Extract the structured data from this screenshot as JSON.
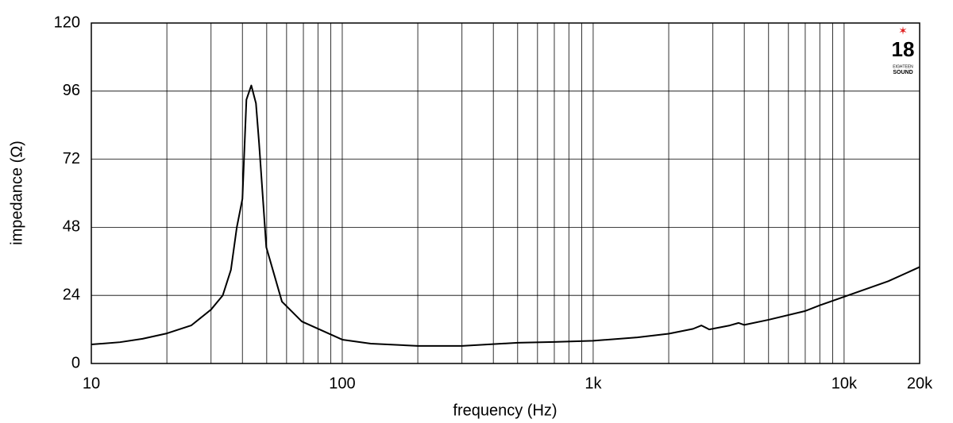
{
  "chart_data": {
    "type": "line",
    "xlabel": "frequency (Hz)",
    "ylabel": "impedance (Ω)",
    "x": [
      10,
      13,
      16,
      20,
      25,
      30,
      33.4,
      36,
      38,
      40,
      41.5,
      43.4,
      45.3,
      46.6,
      49.8,
      57.5,
      69,
      100,
      130,
      200,
      300,
      500,
      700,
      1000,
      1500,
      2000,
      2500,
      2700,
      2900,
      3500,
      3800,
      4000,
      5000,
      7000,
      8000,
      10000,
      15000,
      20000
    ],
    "values": [
      6.7,
      7.5,
      8.7,
      10.6,
      13.4,
      19,
      24,
      33,
      48,
      58,
      93,
      98,
      91.7,
      77.8,
      41,
      21.8,
      14.8,
      8.4,
      7,
      6.2,
      6.2,
      7.3,
      7.6,
      8,
      9.2,
      10.5,
      12.2,
      13.4,
      12,
      13.4,
      14.3,
      13.6,
      15.4,
      18.5,
      20.5,
      23.5,
      29,
      34
    ],
    "color": "#000000",
    "xscale": "log",
    "minor_grid": true,
    "grid": true,
    "xlim": [
      10,
      20000
    ],
    "ylim": [
      0,
      120
    ],
    "xticks": [
      10,
      100,
      {
        "value": 1000,
        "label": "1k"
      },
      {
        "value": 10000,
        "label": "10k"
      },
      {
        "value": 20000,
        "label": "20k"
      }
    ],
    "yticks": [
      0,
      24,
      48,
      72,
      96,
      120
    ]
  },
  "logo": {
    "number": "18",
    "line1": "EIGHTEEN",
    "line2": "SOUND"
  }
}
